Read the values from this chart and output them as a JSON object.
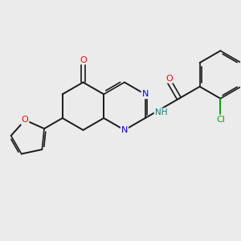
{
  "background_color": "#ebebeb",
  "bond_color": "#1a1a1a",
  "atom_colors": {
    "O": "#ff0000",
    "N": "#0000ff",
    "NH": "#008080",
    "Cl": "#00aa00",
    "C": "#1a1a1a"
  },
  "figsize": [
    3.0,
    3.0
  ],
  "dpi": 100
}
